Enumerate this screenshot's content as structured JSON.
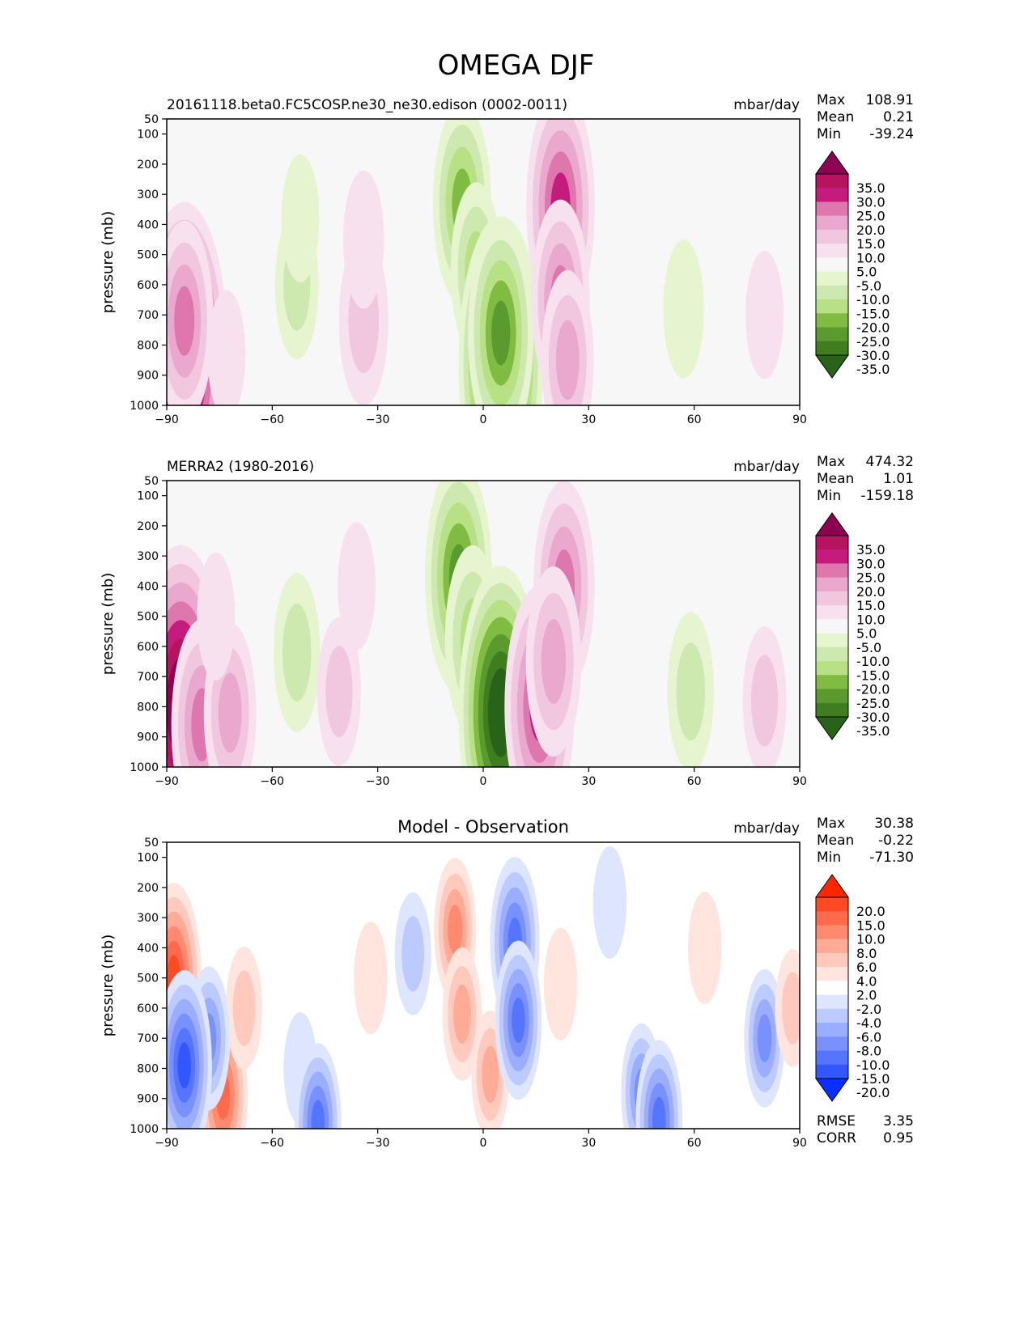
{
  "figure": {
    "title": "OMEGA DJF"
  },
  "chart_data": [
    {
      "type": "heatmap",
      "left_title": "20161118.beta0.FC5COSP.ne30_ne30.edison (0002-0011)",
      "center_title": "",
      "units": "mbar/day",
      "ylabel": "pressure (mb)",
      "xlim": [
        -90,
        90
      ],
      "ylim": [
        1000,
        50
      ],
      "x_ticks": [
        "−90",
        "−60",
        "−30",
        "0",
        "30",
        "60",
        "90"
      ],
      "y_ticks": [
        "50",
        "100",
        "200",
        "300",
        "400",
        "500",
        "600",
        "700",
        "800",
        "900",
        "1000"
      ],
      "stats": [
        {
          "label": "Max",
          "value": "108.91"
        },
        {
          "label": "Mean",
          "value": "0.21"
        },
        {
          "label": "Min",
          "value": "-39.24"
        }
      ],
      "footer_stats": [],
      "colorbar": {
        "labels": [
          "35.0",
          "30.0",
          "25.0",
          "20.0",
          "15.0",
          "10.0",
          "5.0",
          "-5.0",
          "-10.0",
          "-15.0",
          "-20.0",
          "-25.0",
          "-30.0",
          "-35.0"
        ],
        "colors": [
          "#8e0152",
          "#b7145f",
          "#c51b7d",
          "#de77ae",
          "#eaa8ce",
          "#f1c6df",
          "#f7e1ee",
          "#f7f7f7",
          "#e6f5d0",
          "#cde9af",
          "#b8e186",
          "#7fbc41",
          "#5a9a2f",
          "#3f7d20",
          "#276419"
        ]
      },
      "features": [
        {
          "lat": -85,
          "p": 830,
          "value": 40
        },
        {
          "lat": -85,
          "p": 720,
          "value": 20
        },
        {
          "lat": -73,
          "p": 830,
          "value": 6
        },
        {
          "lat": -53,
          "p": 600,
          "value": -10
        },
        {
          "lat": -52,
          "p": 380,
          "value": -6
        },
        {
          "lat": -34,
          "p": 720,
          "value": 14
        },
        {
          "lat": -34,
          "p": 450,
          "value": 8
        },
        {
          "lat": -6,
          "p": 330,
          "value": -20
        },
        {
          "lat": -2,
          "p": 550,
          "value": -15
        },
        {
          "lat": 5,
          "p": 860,
          "value": -38
        },
        {
          "lat": 5,
          "p": 760,
          "value": -25
        },
        {
          "lat": 22,
          "p": 340,
          "value": 27
        },
        {
          "lat": 22,
          "p": 650,
          "value": 20
        },
        {
          "lat": 24,
          "p": 850,
          "value": 16
        },
        {
          "lat": 57,
          "p": 680,
          "value": -8
        },
        {
          "lat": 80,
          "p": 700,
          "value": 6
        }
      ]
    },
    {
      "type": "heatmap",
      "left_title": "MERRA2 (1980-2016)",
      "center_title": "",
      "units": "mbar/day",
      "ylabel": "pressure (mb)",
      "xlim": [
        -90,
        90
      ],
      "ylim": [
        1000,
        50
      ],
      "x_ticks": [
        "−90",
        "−60",
        "−30",
        "0",
        "30",
        "60",
        "90"
      ],
      "y_ticks": [
        "50",
        "100",
        "200",
        "300",
        "400",
        "500",
        "600",
        "700",
        "800",
        "900",
        "1000"
      ],
      "stats": [
        {
          "label": "Max",
          "value": "474.32"
        },
        {
          "label": "Mean",
          "value": "1.01"
        },
        {
          "label": "Min",
          "value": "-159.18"
        }
      ],
      "footer_stats": [],
      "colorbar": {
        "labels": [
          "35.0",
          "30.0",
          "25.0",
          "20.0",
          "15.0",
          "10.0",
          "5.0",
          "-5.0",
          "-10.0",
          "-15.0",
          "-20.0",
          "-25.0",
          "-30.0",
          "-35.0"
        ],
        "colors": [
          "#8e0152",
          "#b7145f",
          "#c51b7d",
          "#de77ae",
          "#eaa8ce",
          "#f1c6df",
          "#f7e1ee",
          "#f7f7f7",
          "#e6f5d0",
          "#cde9af",
          "#b8e186",
          "#7fbc41",
          "#5a9a2f",
          "#3f7d20",
          "#276419"
        ]
      },
      "features": [
        {
          "lat": -86,
          "p": 800,
          "value": 45
        },
        {
          "lat": -80,
          "p": 860,
          "value": 22
        },
        {
          "lat": -72,
          "p": 820,
          "value": 16
        },
        {
          "lat": -76,
          "p": 500,
          "value": 6
        },
        {
          "lat": -53,
          "p": 620,
          "value": -12
        },
        {
          "lat": -41,
          "p": 750,
          "value": 10
        },
        {
          "lat": -36,
          "p": 400,
          "value": 6
        },
        {
          "lat": -7,
          "p": 370,
          "value": -26
        },
        {
          "lat": -3,
          "p": 580,
          "value": -18
        },
        {
          "lat": 5,
          "p": 820,
          "value": -38
        },
        {
          "lat": 16,
          "p": 800,
          "value": 28
        },
        {
          "lat": 23,
          "p": 400,
          "value": 22
        },
        {
          "lat": 20,
          "p": 650,
          "value": 18
        },
        {
          "lat": 59,
          "p": 750,
          "value": -12
        },
        {
          "lat": 80,
          "p": 780,
          "value": 10
        }
      ]
    },
    {
      "type": "heatmap",
      "left_title": "",
      "center_title": "Model - Observation",
      "units": "mbar/day",
      "ylabel": "pressure (mb)",
      "xlim": [
        -90,
        90
      ],
      "ylim": [
        1000,
        50
      ],
      "x_ticks": [
        "−90",
        "−60",
        "−30",
        "0",
        "30",
        "60",
        "90"
      ],
      "y_ticks": [
        "50",
        "100",
        "200",
        "300",
        "400",
        "500",
        "600",
        "700",
        "800",
        "900",
        "1000"
      ],
      "stats": [
        {
          "label": "Max",
          "value": "30.38"
        },
        {
          "label": "Mean",
          "value": "-0.22"
        },
        {
          "label": "Min",
          "value": "-71.30"
        }
      ],
      "footer_stats": [
        {
          "label": "RMSE",
          "value": "3.35"
        },
        {
          "label": "CORR",
          "value": "0.95"
        }
      ],
      "colorbar": {
        "labels": [
          "20.0",
          "15.0",
          "10.0",
          "8.0",
          "6.0",
          "4.0",
          "2.0",
          "-2.0",
          "-4.0",
          "-6.0",
          "-8.0",
          "-10.0",
          "-15.0",
          "-20.0"
        ],
        "colors": [
          "#ff2600",
          "#ff4a24",
          "#ff6a4c",
          "#ff8a70",
          "#ffab96",
          "#ffcabd",
          "#ffe5de",
          "#ffffff",
          "#dee5ff",
          "#bdcaff",
          "#9aadff",
          "#7891ff",
          "#5575ff",
          "#3357ff",
          "#0a2eff"
        ]
      },
      "features": [
        {
          "lat": -88,
          "p": 500,
          "value": 18
        },
        {
          "lat": -85,
          "p": 900,
          "value": 22
        },
        {
          "lat": -74,
          "p": 890,
          "value": 14
        },
        {
          "lat": -68,
          "p": 600,
          "value": 5
        },
        {
          "lat": -78,
          "p": 700,
          "value": -9
        },
        {
          "lat": -85,
          "p": 790,
          "value": -18
        },
        {
          "lat": -52,
          "p": 800,
          "value": -3
        },
        {
          "lat": -47,
          "p": 980,
          "value": -12
        },
        {
          "lat": -32,
          "p": 500,
          "value": 3
        },
        {
          "lat": -20,
          "p": 420,
          "value": -5
        },
        {
          "lat": -8,
          "p": 340,
          "value": 9
        },
        {
          "lat": -6,
          "p": 620,
          "value": 7
        },
        {
          "lat": 2,
          "p": 820,
          "value": 6
        },
        {
          "lat": 9,
          "p": 380,
          "value": -14
        },
        {
          "lat": 10,
          "p": 640,
          "value": -12
        },
        {
          "lat": 22,
          "p": 520,
          "value": 3
        },
        {
          "lat": 36,
          "p": 250,
          "value": -3
        },
        {
          "lat": 45,
          "p": 880,
          "value": -8
        },
        {
          "lat": 50,
          "p": 970,
          "value": -12
        },
        {
          "lat": 63,
          "p": 400,
          "value": 3
        },
        {
          "lat": 80,
          "p": 700,
          "value": -8
        },
        {
          "lat": 88,
          "p": 600,
          "value": 4
        }
      ]
    }
  ]
}
